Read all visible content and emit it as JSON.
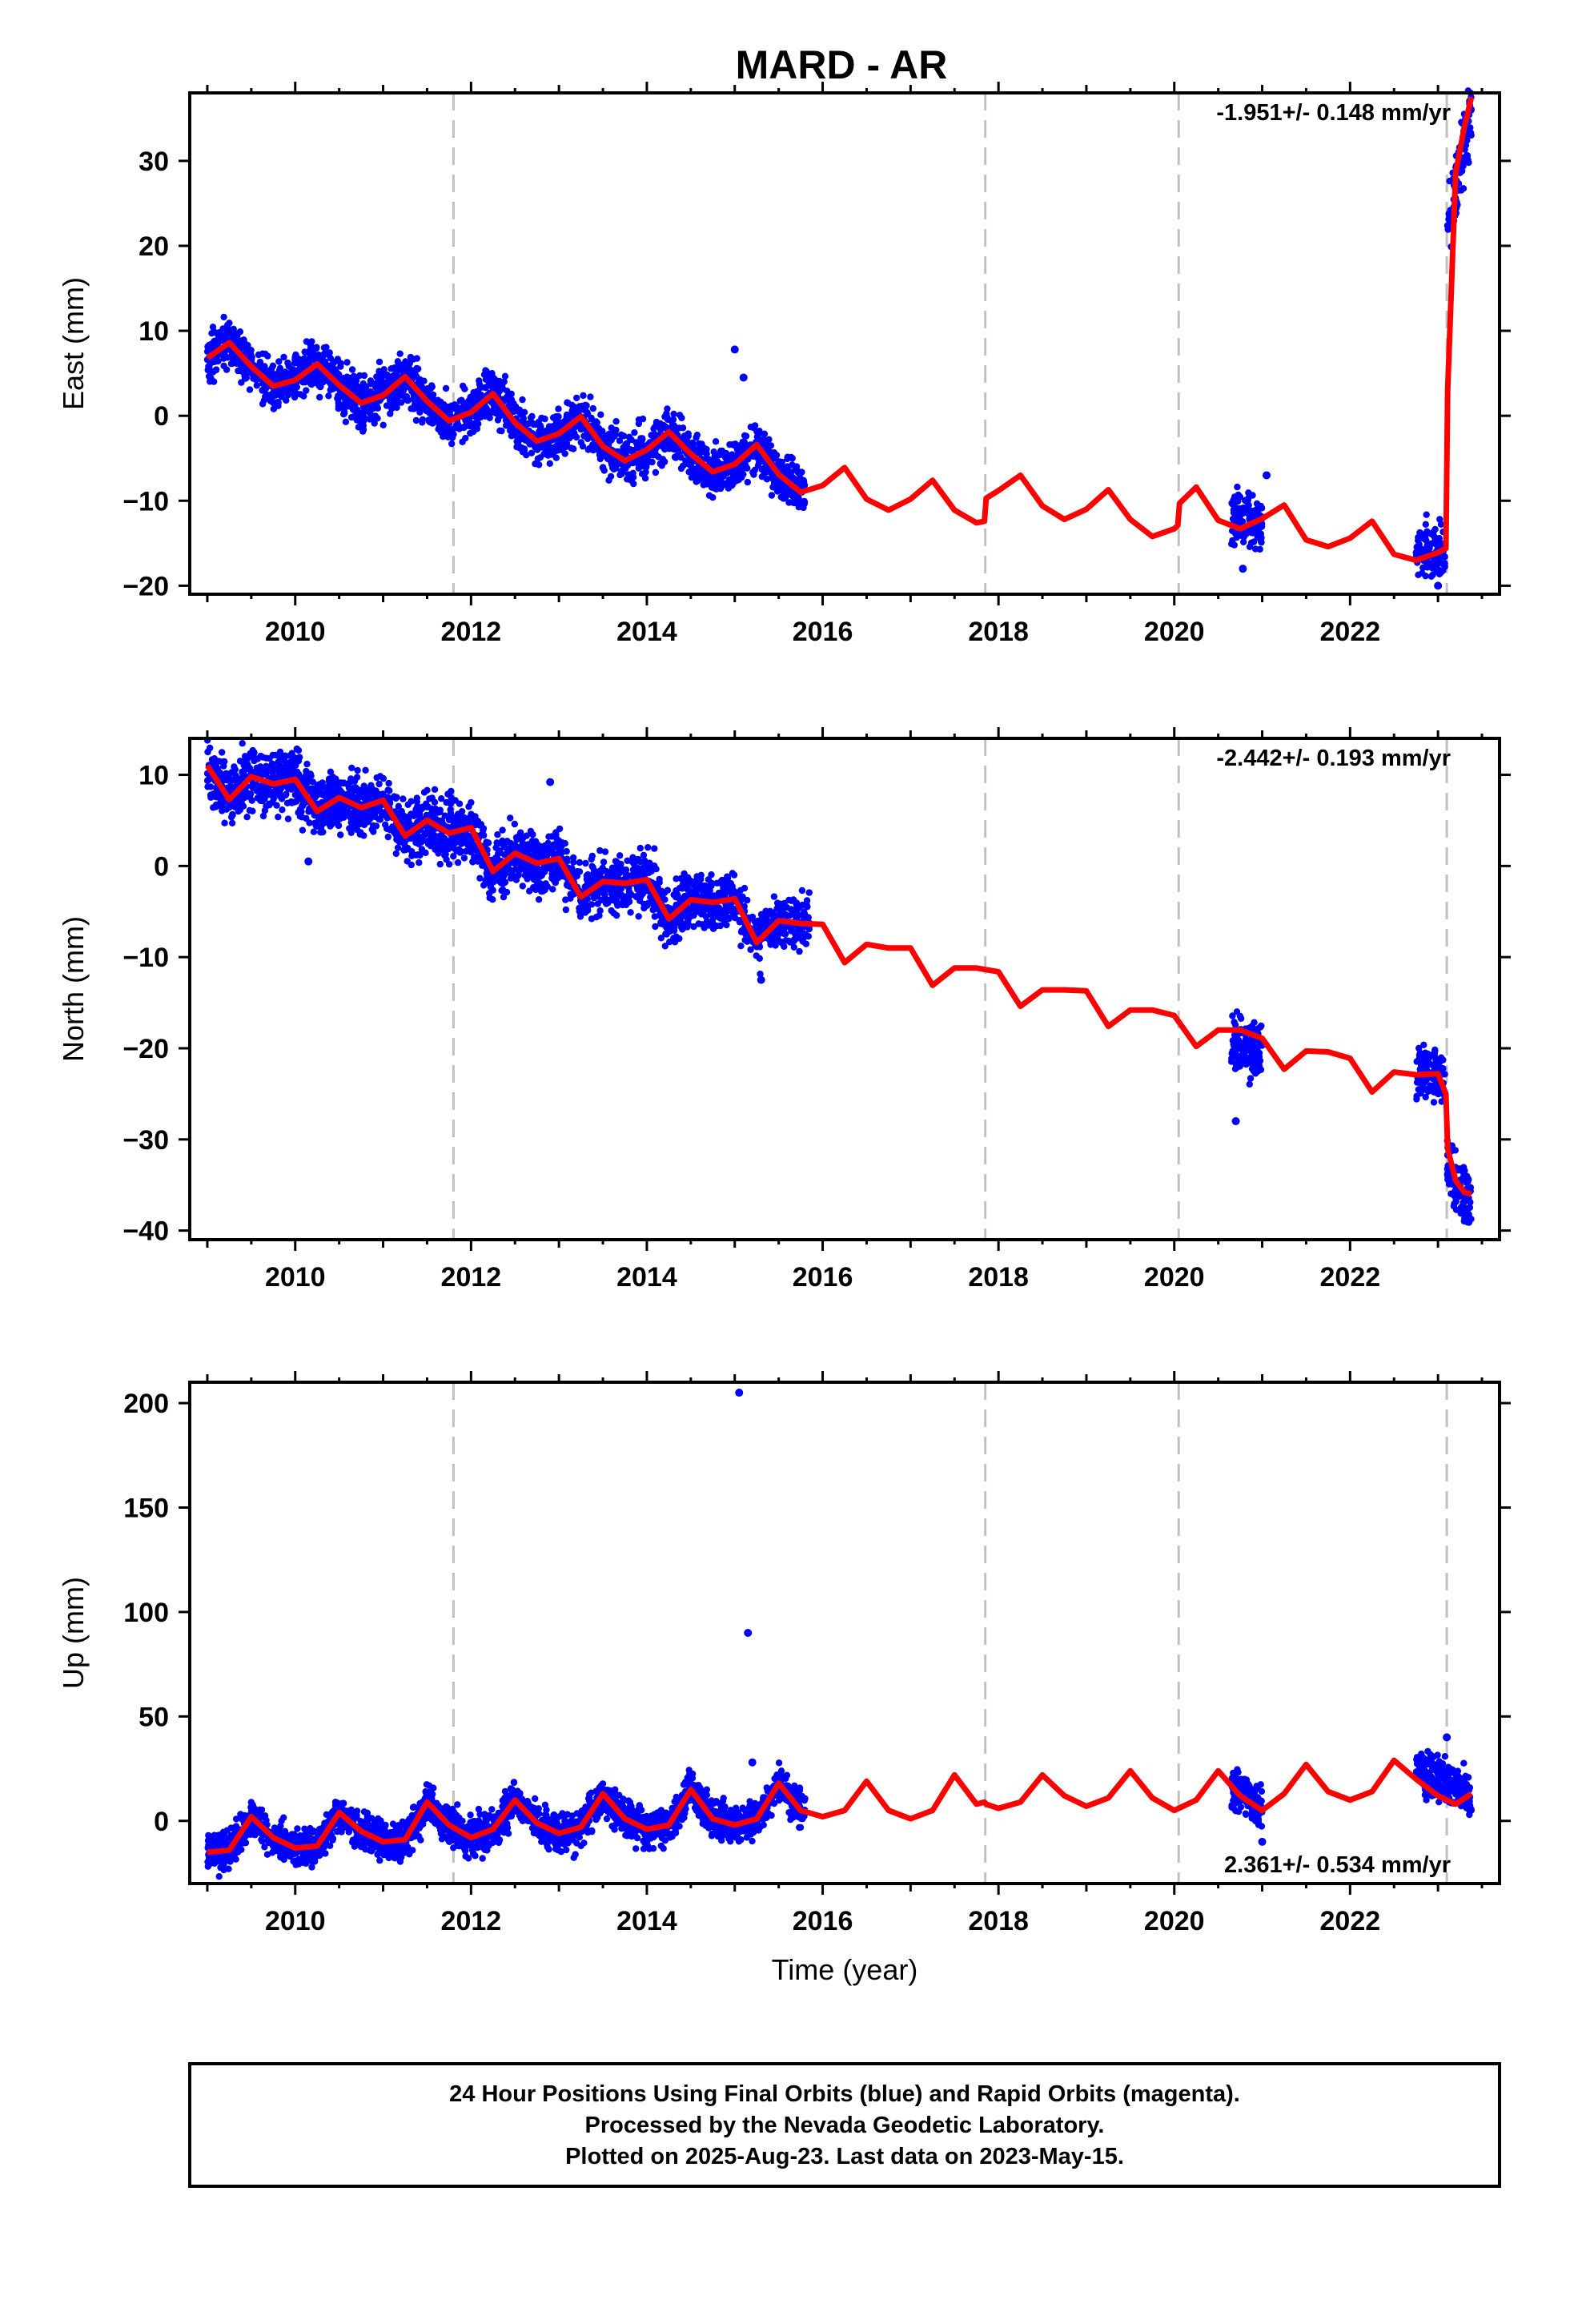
{
  "title": "MARD - AR",
  "caption": [
    "24 Hour Positions Using Final Orbits (blue) and Rapid Orbits (magenta).",
    "Processed by the Nevada Geodetic Laboratory.",
    "Plotted on 2025-Aug-23. Last data on 2023-May-15."
  ],
  "colors": {
    "data_points": "#0000ff",
    "model_line": "#ff0000",
    "event_lines": "#c0c0c0",
    "frame": "#000000"
  },
  "chart_data": [
    {
      "type": "scatter",
      "name": "east",
      "ylabel": "East (mm)",
      "xlabel": "",
      "xlim": [
        2008.8,
        2023.7
      ],
      "ylim": [
        -21,
        38
      ],
      "xticks": [
        2010,
        2012,
        2014,
        2016,
        2018,
        2020,
        2022
      ],
      "yticks": [
        -20,
        -10,
        0,
        10,
        20,
        30
      ],
      "rate_label": "-1.951+/- 0.148 mm/yr",
      "event_lines": [
        2011.8,
        2017.85,
        2020.05,
        2023.1
      ],
      "model": {
        "x": [
          2009.0,
          2009.25,
          2009.5,
          2009.75,
          2010.0,
          2010.25,
          2010.5,
          2010.75,
          2011.0,
          2011.25,
          2011.5,
          2011.75,
          2012.0,
          2012.25,
          2012.5,
          2012.75,
          2013.0,
          2013.25,
          2013.5,
          2013.75,
          2014.0,
          2014.25,
          2014.5,
          2014.75,
          2015.0,
          2015.25,
          2015.5,
          2015.75,
          2016.0,
          2016.25,
          2016.5,
          2016.75,
          2017.0,
          2017.25,
          2017.5,
          2017.75,
          2017.84,
          2017.86,
          2018.0,
          2018.25,
          2018.5,
          2018.75,
          2019.0,
          2019.25,
          2019.5,
          2019.75,
          2020.0,
          2020.04,
          2020.06,
          2020.25,
          2020.5,
          2020.75,
          2021.0,
          2021.25,
          2021.5,
          2021.75,
          2022.0,
          2022.25,
          2022.5,
          2022.75,
          2023.0,
          2023.09,
          2023.11,
          2023.2,
          2023.3,
          2023.38
        ],
        "y": [
          6.8,
          8.6,
          5.8,
          3.5,
          4.2,
          6.1,
          3.6,
          1.5,
          2.4,
          4.6,
          1.7,
          -0.6,
          0.4,
          2.6,
          -0.8,
          -3.0,
          -2.1,
          -0.1,
          -3.6,
          -5.3,
          -4.0,
          -1.9,
          -4.5,
          -6.6,
          -5.7,
          -3.4,
          -6.9,
          -9.0,
          -8.2,
          -6.1,
          -9.8,
          -11.1,
          -9.8,
          -7.6,
          -11.1,
          -12.6,
          -12.4,
          -9.7,
          -8.8,
          -7.0,
          -10.6,
          -12.2,
          -11.0,
          -8.7,
          -12.2,
          -14.2,
          -13.3,
          -12.9,
          -10.3,
          -8.4,
          -12.3,
          -13.3,
          -12.1,
          -10.5,
          -14.6,
          -15.4,
          -14.4,
          -12.4,
          -16.3,
          -17.0,
          -16.1,
          -15.6,
          3.0,
          28.5,
          34.0,
          37.5
        ]
      },
      "observations": [
        {
          "x": [
            2009.0,
            2015.8
          ],
          "y_mean": [
            8.0,
            -8.0
          ],
          "scatter": 1.4,
          "seasonal": 2.2
        },
        {
          "x": [
            2020.65,
            2021.0
          ],
          "y_mean": [
            -12.0,
            -12.5
          ],
          "scatter": 1.5,
          "seasonal": 0
        },
        {
          "x": [
            2022.75,
            2023.08
          ],
          "y_mean": [
            -16.0,
            -16.3
          ],
          "scatter": 1.5,
          "seasonal": 0
        },
        {
          "x": [
            2023.1,
            2023.38
          ],
          "y_mean": [
            22.0,
            36.0
          ],
          "scatter": 2.0,
          "seasonal": 0
        }
      ],
      "outliers": {
        "x": [
          2015.0,
          2015.1,
          2021.05,
          2020.78,
          2023.0
        ],
        "y": [
          7.8,
          4.5,
          -7.0,
          -18.0,
          -20.0
        ]
      }
    },
    {
      "type": "scatter",
      "name": "north",
      "ylabel": "North (mm)",
      "xlabel": "",
      "xlim": [
        2008.8,
        2023.7
      ],
      "ylim": [
        -41,
        14
      ],
      "xticks": [
        2010,
        2012,
        2014,
        2016,
        2018,
        2020,
        2022
      ],
      "yticks": [
        -40,
        -30,
        -20,
        -10,
        0,
        10
      ],
      "rate_label": "-2.442+/- 0.193 mm/yr",
      "event_lines": [
        2011.8,
        2017.85,
        2020.05,
        2023.1
      ],
      "model": {
        "x": [
          2009.0,
          2009.25,
          2009.5,
          2009.75,
          2010.0,
          2010.25,
          2010.5,
          2010.75,
          2011.0,
          2011.25,
          2011.5,
          2011.75,
          2012.0,
          2012.25,
          2012.5,
          2012.75,
          2013.0,
          2013.25,
          2013.5,
          2013.75,
          2014.0,
          2014.25,
          2014.5,
          2014.75,
          2015.0,
          2015.25,
          2015.5,
          2015.75,
          2016.0,
          2016.25,
          2016.5,
          2016.75,
          2017.0,
          2017.25,
          2017.5,
          2017.75,
          2018.0,
          2018.25,
          2018.5,
          2018.75,
          2019.0,
          2019.25,
          2019.5,
          2019.75,
          2020.0,
          2020.25,
          2020.5,
          2020.75,
          2021.0,
          2021.25,
          2021.5,
          2021.75,
          2022.0,
          2022.25,
          2022.5,
          2022.75,
          2023.0,
          2023.09,
          2023.11,
          2023.2,
          2023.3,
          2023.38
        ],
        "y": [
          11.0,
          7.3,
          9.8,
          9.0,
          9.5,
          6.0,
          7.5,
          6.4,
          7.2,
          3.3,
          5.0,
          3.6,
          4.2,
          -0.6,
          1.4,
          0.3,
          0.8,
          -3.4,
          -1.7,
          -1.9,
          -1.5,
          -5.8,
          -3.7,
          -4.0,
          -3.6,
          -8.4,
          -6.0,
          -6.3,
          -6.4,
          -10.6,
          -8.6,
          -9.0,
          -9.0,
          -13.1,
          -11.2,
          -11.2,
          -11.6,
          -15.4,
          -13.6,
          -13.6,
          -13.7,
          -17.6,
          -15.8,
          -15.8,
          -16.4,
          -19.8,
          -18.0,
          -18.0,
          -18.9,
          -22.3,
          -20.3,
          -20.4,
          -21.1,
          -24.8,
          -22.6,
          -22.9,
          -22.8,
          -25.0,
          -31.0,
          -34.5,
          -35.8,
          -36.0
        ]
      },
      "observations": [
        {
          "x": [
            2009.0,
            2015.85
          ],
          "y_mean": [
            10.5,
            -7.0
          ],
          "scatter": 1.6,
          "seasonal": 1.8
        },
        {
          "x": [
            2020.65,
            2021.0
          ],
          "y_mean": [
            -19.5,
            -20.0
          ],
          "scatter": 1.6,
          "seasonal": 0
        },
        {
          "x": [
            2022.75,
            2023.08
          ],
          "y_mean": [
            -22.5,
            -23.0
          ],
          "scatter": 1.3,
          "seasonal": 0
        },
        {
          "x": [
            2023.1,
            2023.38
          ],
          "y_mean": [
            -33.0,
            -37.0
          ],
          "scatter": 1.6,
          "seasonal": 0
        }
      ],
      "outliers": {
        "x": [
          2012.9,
          2020.7,
          2015.3,
          2010.15
        ],
        "y": [
          9.2,
          -28.0,
          -12.5,
          0.5
        ]
      }
    },
    {
      "type": "scatter",
      "name": "up",
      "ylabel": "Up (mm)",
      "xlabel": "Time (year)",
      "xlim": [
        2008.8,
        2023.7
      ],
      "ylim": [
        -30,
        210
      ],
      "xticks": [
        2010,
        2012,
        2014,
        2016,
        2018,
        2020,
        2022
      ],
      "yticks": [
        0,
        50,
        100,
        150,
        200
      ],
      "rate_label": "2.361+/- 0.534 mm/yr",
      "event_lines": [
        2011.8,
        2017.85,
        2020.05,
        2023.1
      ],
      "model": {
        "x": [
          2009.0,
          2009.25,
          2009.5,
          2009.75,
          2010.0,
          2010.25,
          2010.5,
          2010.75,
          2011.0,
          2011.25,
          2011.5,
          2011.75,
          2012.0,
          2012.25,
          2012.5,
          2012.75,
          2013.0,
          2013.25,
          2013.5,
          2013.75,
          2014.0,
          2014.25,
          2014.5,
          2014.75,
          2015.0,
          2015.25,
          2015.5,
          2015.75,
          2016.0,
          2016.25,
          2016.5,
          2016.75,
          2017.0,
          2017.25,
          2017.5,
          2017.75,
          2017.84,
          2017.86,
          2018.0,
          2018.25,
          2018.5,
          2018.75,
          2019.0,
          2019.25,
          2019.5,
          2019.75,
          2020.0,
          2020.25,
          2020.5,
          2020.75,
          2021.0,
          2021.25,
          2021.5,
          2021.75,
          2022.0,
          2022.25,
          2022.5,
          2022.75,
          2023.0,
          2023.2,
          2023.38
        ],
        "y": [
          -15,
          -14,
          2,
          -8,
          -13,
          -12,
          4,
          -5,
          -10,
          -9,
          9,
          -2,
          -8,
          -4,
          10,
          -1,
          -6,
          -3,
          13,
          1,
          -4,
          -2,
          15,
          1,
          -2,
          1,
          18,
          5,
          2,
          5,
          19,
          5,
          1,
          5,
          22,
          8,
          9,
          8,
          6,
          9,
          22,
          12,
          7,
          11,
          24,
          11,
          5,
          10,
          24,
          12,
          5,
          13,
          27,
          14,
          10,
          14,
          29,
          20,
          12,
          8,
          13
        ]
      },
      "observations": [
        {
          "x": [
            2009.0,
            2015.8
          ],
          "y_mean": [
            -13.0,
            3.0
          ],
          "scatter": 4.5,
          "seasonal": 11.0
        },
        {
          "x": [
            2020.65,
            2021.0
          ],
          "y_mean": [
            16.0,
            6.0
          ],
          "scatter": 5.0,
          "seasonal": 0
        },
        {
          "x": [
            2022.75,
            2023.38
          ],
          "y_mean": [
            26.0,
            12.0
          ],
          "scatter": 5.0,
          "seasonal": 0
        }
      ],
      "outliers": {
        "x": [
          2015.05,
          2015.15,
          2015.2,
          2023.1,
          2021.0
        ],
        "y": [
          205,
          90,
          28,
          40,
          -10
        ]
      }
    }
  ]
}
